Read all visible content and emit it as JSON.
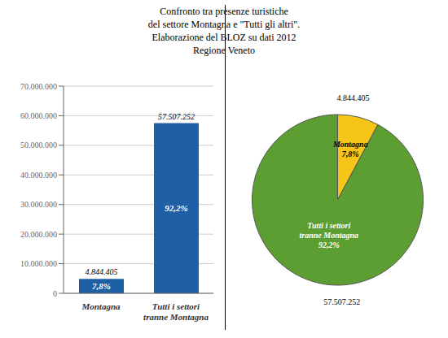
{
  "chart_data": [
    {
      "type": "bar",
      "title": "Confronto tra presenze turistiche\ndel settore Montagna e \"Tutti gli altri\".\nElaborazione del BLOZ su dati 2012\nRegione Veneto",
      "categories": [
        "Montagna",
        "Tutti i settori\ntranne Montagna"
      ],
      "values": [
        4844405,
        57507252
      ],
      "value_labels": [
        "4.844.405",
        "57.507.252"
      ],
      "data_labels": true,
      "annotations": [
        "7,8%",
        "92,2%"
      ],
      "color": "#1F5FA6",
      "ylim": [
        0,
        70000000
      ],
      "yticks": [
        0,
        {
          "value": 10000000,
          "label": "10.000.000"
        },
        {
          "value": 20000000,
          "label": "20.000.000"
        },
        {
          "value": 30000000,
          "label": "30.000.000"
        },
        {
          "value": 40000000,
          "label": "40.000.000"
        },
        {
          "value": 50000000,
          "label": "50.000.000"
        },
        {
          "value": 60000000,
          "label": "60.000.000"
        },
        {
          "value": 70000000,
          "label": "70.000.000"
        }
      ],
      "grid": true
    },
    {
      "type": "pie",
      "categories": [
        "Montagna",
        "Tutti i settori\ntranne Montagna"
      ],
      "values": [
        7.8,
        92.2
      ],
      "value_labels": [
        "7,8%",
        "92,2%"
      ],
      "data_labels": true,
      "colors": [
        "#F5C518",
        "#5C9E31"
      ],
      "annotations": [
        "4.844.405",
        "57.507.252"
      ]
    }
  ]
}
